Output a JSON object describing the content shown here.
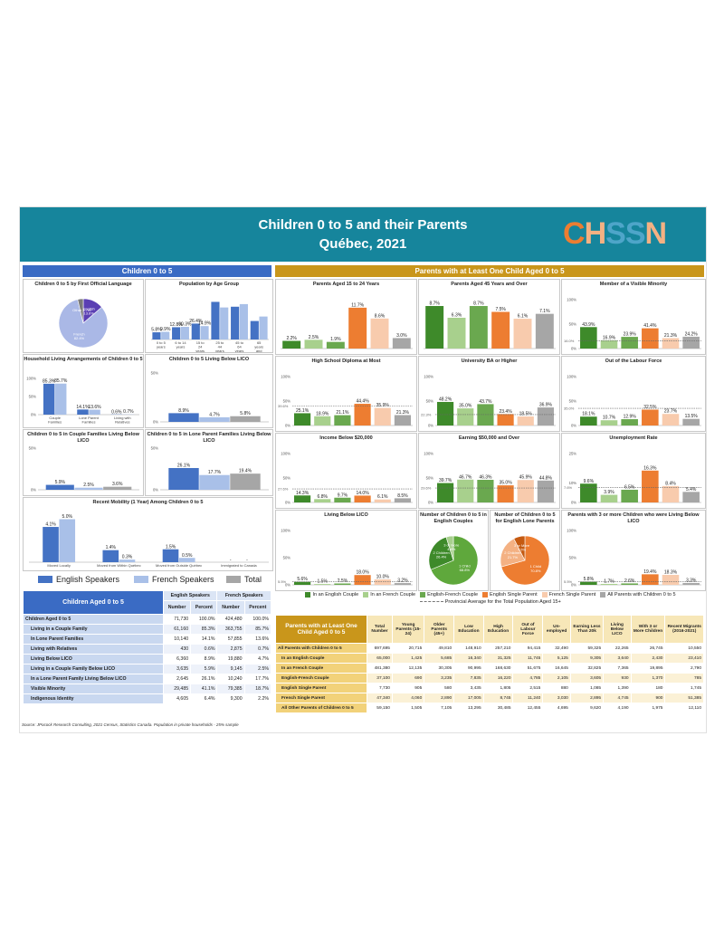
{
  "header": {
    "title_line1": "Children 0 to 5 and their Parents",
    "title_line2": "Québec, 2021",
    "logo_text": "CHSSN"
  },
  "left_section": {
    "title": "Children 0 to 5"
  },
  "right_section": {
    "title": "Parents with at Least One Child Aged 0 to 5"
  },
  "colors": {
    "english": "#4472c4",
    "french": "#a9c0e8",
    "total": "#a6a6a6",
    "in_english_couple": "#3e8a2a",
    "in_french_couple": "#a8d08d",
    "english_french_couple": "#6aa84f",
    "english_single": "#ed7d31",
    "french_single": "#f8cbad",
    "all_parents": "#a6a6a6",
    "banner": "#16859c",
    "left_header": "#3a6bc4",
    "right_header": "#c9961b"
  },
  "legend_left": {
    "english": "English Speakers",
    "french": "French Speakers",
    "total": "Total"
  },
  "legend_right": {
    "items": [
      "In an English Couple",
      "In an French Couple",
      "English-French Couple",
      "English Single Parent",
      "French Single Parent",
      "All Parents with Children 0 to 5"
    ],
    "provincial_line": "Provincial Average for the Total Population Aged 15+"
  },
  "chart_data": [
    {
      "id": "first-language",
      "type": "pie",
      "title": "Children 0 to 5 by First Official Language",
      "slices": [
        {
          "label": "English",
          "value": 13.6,
          "text": "English\n13.6%"
        },
        {
          "label": "French",
          "value": 82.4,
          "text": "French\n82.4%"
        },
        {
          "label": "Other",
          "value": 3.7,
          "text": "Other 3.7%"
        }
      ]
    },
    {
      "id": "age-group",
      "type": "bar",
      "title": "Population by Age Group",
      "categories": [
        "0 to 5 years",
        "6 to 14 years",
        "15 to 24 years",
        "25 to 44 years",
        "45 to 64 years",
        "65 years and over"
      ],
      "series": [
        {
          "name": "English Speakers",
          "values": [
            5.8,
            9.9,
            12.8,
            30.3,
            26.4,
            14.9
          ]
        },
        {
          "name": "French Speakers",
          "values": [
            6.2,
            10.2,
            10.8,
            25.8,
            28.5,
            18.5
          ]
        }
      ],
      "labels": [
        "5.8%",
        "9.9%",
        "12.8%",
        "30.3%",
        "26.4%",
        "14.9%"
      ],
      "ylim": [
        0,
        35
      ]
    },
    {
      "id": "living-arrangements",
      "type": "bar",
      "title": "Household Living Arrangements of Children 0 to 5",
      "categories": [
        "Couple Families",
        "Lone Parent Families",
        "Living with Relatives"
      ],
      "series": [
        {
          "name": "English Speakers",
          "values": [
            85.3,
            14.1,
            0.6
          ]
        },
        {
          "name": "French Speakers",
          "values": [
            85.7,
            13.6,
            0.7
          ]
        }
      ],
      "labels": [
        "85.3%",
        "85.7%",
        "14.1%",
        "13.6%",
        "0.6%",
        "0.7%"
      ],
      "ylim": [
        0,
        100
      ],
      "ticks": [
        "100%",
        "50%",
        "0%"
      ]
    },
    {
      "id": "below-lico",
      "type": "bar",
      "title": "Children 0 to 5 Living Below LICO",
      "categories": [
        ""
      ],
      "series": [
        {
          "name": "English Speakers",
          "values": [
            8.9
          ]
        },
        {
          "name": "French Speakers",
          "values": [
            4.7
          ]
        },
        {
          "name": "Total",
          "values": [
            5.8
          ]
        }
      ],
      "labels": [
        "8.9%",
        "4.7%",
        "5.8%"
      ],
      "ylim": [
        0,
        50
      ],
      "ticks": [
        "50%",
        "0%"
      ]
    },
    {
      "id": "couple-lico",
      "type": "bar",
      "title": "Children 0 to 5 in Couple Families Living Below LICO",
      "categories": [
        ""
      ],
      "series": [
        {
          "name": "English Speakers",
          "values": [
            5.9
          ]
        },
        {
          "name": "French Speakers",
          "values": [
            2.5
          ]
        },
        {
          "name": "Total",
          "values": [
            3.6
          ]
        }
      ],
      "labels": [
        "5.9%",
        "2.5%",
        "3.6%"
      ],
      "ylim": [
        0,
        50
      ],
      "ticks": [
        "50%",
        "0%"
      ]
    },
    {
      "id": "lone-lico",
      "type": "bar",
      "title": "Children 0 to 5 in Lone Parent Families Living Below LICO",
      "categories": [
        ""
      ],
      "series": [
        {
          "name": "English Speakers",
          "values": [
            26.1
          ]
        },
        {
          "name": "French Speakers",
          "values": [
            17.7
          ]
        },
        {
          "name": "Total",
          "values": [
            19.4
          ]
        }
      ],
      "labels": [
        "26.1%",
        "17.7%",
        "19.4%"
      ],
      "ylim": [
        0,
        50
      ],
      "ticks": [
        "50%",
        "0%"
      ]
    },
    {
      "id": "mobility",
      "type": "bar",
      "title": "Recent Mobility (1 Year) Among Children 0 to 5",
      "categories": [
        "Moved Locally",
        "Moved from Within Québec",
        "Moved from Outside Québec",
        "Immigrated to Canada"
      ],
      "series": [
        {
          "name": "English Speakers",
          "values": [
            4.1,
            1.4,
            1.5,
            0
          ]
        },
        {
          "name": "French Speakers",
          "values": [
            5.0,
            0.3,
            0.5,
            0
          ]
        }
      ],
      "labels": [
        "4.1%",
        "5.0%",
        "1.4%",
        "0.3%",
        "1.5%",
        "0.5%",
        "-",
        "-"
      ],
      "ylim": [
        0,
        6
      ]
    },
    {
      "id": "parents-15-24",
      "type": "bar",
      "title": "Parents Aged 15 to 24 Years",
      "values": [
        2.2,
        2.5,
        1.9,
        11.7,
        8.6,
        3.0
      ],
      "labels": [
        "2.2%",
        "2.5%",
        "1.9%",
        "11.7%",
        "8.6%",
        "3.0%"
      ],
      "ylim": [
        0,
        14
      ]
    },
    {
      "id": "parents-45-over",
      "type": "bar",
      "title": "Parents Aged 45 Years and Over",
      "values": [
        8.7,
        6.3,
        8.7,
        7.5,
        6.1,
        7.1
      ],
      "labels": [
        "8.7%",
        "6.3%",
        "8.7%",
        "7.5%",
        "6.1%",
        "7.1%"
      ],
      "ylim": [
        0,
        10
      ]
    },
    {
      "id": "visible-minority",
      "type": "bar",
      "title": "Member of a Visible Minority",
      "values": [
        43.9,
        16.9,
        23.9,
        41.4,
        21.3,
        24.2
      ],
      "labels": [
        "43.9%",
        "16.9%",
        "23.9%",
        "41.4%",
        "21.3%",
        "24.2%"
      ],
      "ylim": [
        0,
        100
      ],
      "ticks": [
        "100%",
        "50%",
        "0%"
      ],
      "provincial": 16.0,
      "provincial_label": "16.0%"
    },
    {
      "id": "high-school",
      "type": "bar",
      "title": "High School Diploma at Most",
      "values": [
        25.1,
        18.9,
        21.1,
        44.4,
        35.9,
        21.3
      ],
      "labels": [
        "25.1%",
        "18.9%",
        "21.1%",
        "44.4%",
        "35.9%",
        "21.3%"
      ],
      "ylim": [
        0,
        100
      ],
      "ticks": [
        "100%",
        "50%",
        "0%"
      ],
      "provincial": 39.6,
      "provincial_label": "39.6%"
    },
    {
      "id": "university",
      "type": "bar",
      "title": "University BA or Higher",
      "values": [
        48.2,
        35.0,
        43.7,
        23.4,
        18.5,
        36.9
      ],
      "labels": [
        "48.2%",
        "35.0%",
        "43.7%",
        "23.4%",
        "18.5%",
        "36.9%"
      ],
      "ylim": [
        0,
        100
      ],
      "ticks": [
        "100%",
        "50%",
        "0%"
      ],
      "provincial": 22.3,
      "provincial_label": "22.3%"
    },
    {
      "id": "out-labour",
      "type": "bar",
      "title": "Out of the Labour Force",
      "values": [
        18.1,
        10.7,
        12.9,
        32.5,
        23.7,
        13.5
      ],
      "labels": [
        "18.1%",
        "10.7%",
        "12.9%",
        "32.5%",
        "23.7%",
        "13.5%"
      ],
      "ylim": [
        0,
        100
      ],
      "ticks": [
        "100%",
        "50%",
        "0%"
      ],
      "provincial": 35.0,
      "provincial_label": "35.0%"
    },
    {
      "id": "income-20k",
      "type": "bar",
      "title": "Income Below $20,000",
      "values": [
        14.3,
        6.8,
        9.7,
        14.0,
        6.1,
        8.5
      ],
      "labels": [
        "14.3%",
        "6.8%",
        "9.7%",
        "14.0%",
        "6.1%",
        "8.5%"
      ],
      "ylim": [
        0,
        100
      ],
      "ticks": [
        "100%",
        "50%",
        "0%"
      ],
      "provincial": 27.6,
      "provincial_label": "27.6%"
    },
    {
      "id": "earning-50k",
      "type": "bar",
      "title": "Earning $50,000 and Over",
      "values": [
        39.7,
        46.7,
        46.3,
        35.0,
        45.9,
        44.8
      ],
      "labels": [
        "39.7%",
        "46.7%",
        "46.3%",
        "35.0%",
        "45.9%",
        "44.8%"
      ],
      "ylim": [
        0,
        100
      ],
      "ticks": [
        "100%",
        "50%",
        "0%"
      ],
      "provincial": 29.6,
      "provincial_label": "29.6%"
    },
    {
      "id": "unemployment",
      "type": "bar",
      "title": "Unemployment Rate",
      "values": [
        9.6,
        3.9,
        6.5,
        16.3,
        8.4,
        5.4
      ],
      "labels": [
        "9.6%",
        "3.9%",
        "6.5%",
        "16.3%",
        "8.4%",
        "5.4%"
      ],
      "ylim": [
        0,
        25
      ],
      "ticks": [
        "25%",
        "10%",
        "0%"
      ],
      "provincial": 7.6,
      "provincial_label": "7.6%"
    },
    {
      "id": "parents-lico",
      "type": "bar",
      "title": "Living Below LICO",
      "values": [
        5.6,
        1.5,
        2.5,
        18.0,
        10.0,
        3.2
      ],
      "labels": [
        "5.6%",
        "1.5%",
        "2.5%",
        "18.0%",
        "10.0%",
        "3.2%"
      ],
      "ylim": [
        0,
        100
      ],
      "ticks": [
        "100%",
        "50%",
        "0%"
      ],
      "provincial": 5.5,
      "provincial_label": "5.5%"
    },
    {
      "id": "english-couples-pie",
      "type": "pie",
      "title": "Number of Children 0 to 5 in English Couples",
      "slices": [
        {
          "label": "1 Child",
          "value": 68.8,
          "text": "1 Child\n68.8%"
        },
        {
          "label": "2 Children",
          "value": 26.4,
          "text": "2 Children\n26.4%"
        },
        {
          "label": "3 or More Children",
          "value": 4.8,
          "text": "3 or More\n4.8%"
        }
      ]
    },
    {
      "id": "english-lone-pie",
      "type": "pie",
      "title": "Number of Children 0 to 5 for English Lone Parents",
      "slices": [
        {
          "label": "1 Child",
          "value": 70.8,
          "text": "1 Child\n70.8%"
        },
        {
          "label": "2 Children",
          "value": 21.7,
          "text": "2 Children\n21.7%"
        },
        {
          "label": "3 or More Children",
          "value": 7.5,
          "text": "3 or More\n7.5%"
        }
      ]
    },
    {
      "id": "three-children-lico",
      "type": "bar",
      "title": "Parents with 3 or more Children who were Living Below LICO",
      "values": [
        5.8,
        1.7,
        2.6,
        19.4,
        18.3,
        3.3
      ],
      "labels": [
        "5.8%",
        "1.7%",
        "2.6%",
        "19.4%",
        "18.3%",
        "3.3%"
      ],
      "ylim": [
        0,
        100
      ],
      "ticks": [
        "100%",
        "50%",
        "0%"
      ],
      "provincial": 5.5,
      "provincial_label": "5.5%"
    }
  ],
  "children_table": {
    "title": "Children Aged 0 to 5",
    "groups": [
      "English Speakers",
      "French Speakers"
    ],
    "subheaders": [
      "Number",
      "Percent",
      "Number",
      "Percent"
    ],
    "rows": [
      [
        "Children Aged 0 to 5",
        "71,730",
        "100.0%",
        "424,480",
        "100.0%"
      ],
      [
        "Living in a Couple Family",
        "61,160",
        "85.3%",
        "363,755",
        "85.7%"
      ],
      [
        "In Lone Parent Families",
        "10,140",
        "14.1%",
        "57,855",
        "13.6%"
      ],
      [
        "Living with Relatives",
        "430",
        "0.6%",
        "2,875",
        "0.7%"
      ],
      [
        "Living Below LICO",
        "6,360",
        "8.9%",
        "19,880",
        "4.7%"
      ],
      [
        "Living in a Couple Family Below LICO",
        "3,635",
        "5.9%",
        "9,145",
        "2.5%"
      ],
      [
        "In a Lone Parent Family Living Below LICO",
        "2,645",
        "26.1%",
        "10,240",
        "17.7%"
      ],
      [
        "Visible Minority",
        "29,485",
        "41.1%",
        "79,385",
        "18.7%"
      ],
      [
        "Indigenous Identity",
        "4,605",
        "6.4%",
        "9,300",
        "2.2%"
      ]
    ]
  },
  "parents_table": {
    "title": "Parents with at Least One Child Aged 0 to 5",
    "headers": [
      "Total Number",
      "Young Parents (15-24)",
      "Older Parents (45+)",
      "Low Education",
      "High Education",
      "Out of Labour Force",
      "Un-employed",
      "Earning Less Than 20k",
      "Living Below LICO",
      "With 3 or More Children",
      "Recent Migrants (2016-2021)"
    ],
    "rows": [
      [
        "All Parents with Children 0 to 5",
        "697,695",
        "20,715",
        "49,810",
        "148,910",
        "257,210",
        "94,415",
        "32,490",
        "59,325",
        "22,265",
        "26,745",
        "10,550"
      ],
      [
        "In an English Couple",
        "65,000",
        "1,425",
        "5,685",
        "16,340",
        "31,325",
        "11,745",
        "5,125",
        "9,305",
        "3,640",
        "2,430",
        "23,410"
      ],
      [
        "In an French Couple",
        "481,380",
        "12,135",
        "30,305",
        "90,995",
        "168,630",
        "51,675",
        "16,645",
        "32,825",
        "7,365",
        "19,895",
        "2,790"
      ],
      [
        "English-French Couple",
        "37,100",
        "690",
        "3,235",
        "7,835",
        "16,220",
        "4,785",
        "2,105",
        "3,605",
        "930",
        "1,370",
        "785"
      ],
      [
        "English Single Parent",
        "7,730",
        "905",
        "580",
        "3,435",
        "1,805",
        "2,515",
        "880",
        "1,085",
        "1,390",
        "180",
        "1,745"
      ],
      [
        "French Single Parent",
        "47,340",
        "4,060",
        "2,890",
        "17,005",
        "8,745",
        "11,240",
        "3,030",
        "2,895",
        "4,745",
        "900",
        "51,385"
      ],
      [
        "All Other Parents of Children 0 to 5",
        "59,150",
        "1,505",
        "7,105",
        "13,295",
        "30,485",
        "12,455",
        "4,695",
        "9,620",
        "4,190",
        "1,975",
        "12,110"
      ]
    ]
  },
  "source_note": "Source: JPocock Research Consulting, 2021 Census, Statistics Canada. Population in private households - 25% sample"
}
